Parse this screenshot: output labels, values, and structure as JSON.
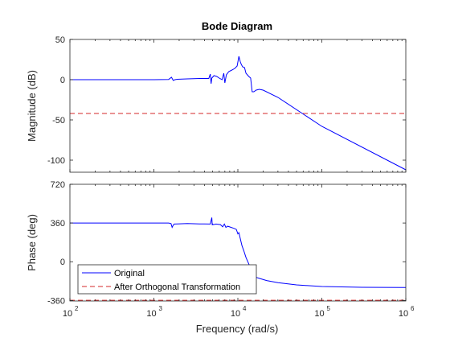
{
  "chart_data": {
    "type": "line",
    "title": "Bode Diagram",
    "xlabel": "Frequency  (rad/s)",
    "x_scale": "log",
    "xlim": [
      100,
      1000000
    ],
    "x_ticks": [
      100,
      1000,
      10000,
      100000,
      1000000
    ],
    "x_tick_labels": [
      {
        "base": "10",
        "exp": "2"
      },
      {
        "base": "10",
        "exp": "3"
      },
      {
        "base": "10",
        "exp": "4"
      },
      {
        "base": "10",
        "exp": "5"
      },
      {
        "base": "10",
        "exp": "6"
      }
    ],
    "grid": false,
    "colors": {
      "original": "#0000ff",
      "transformed": "#d62728",
      "axis": "#262626"
    },
    "legend": {
      "placement": "bottom-left",
      "entries": [
        "Original",
        "After Orthogonal Transformation"
      ]
    },
    "panels": [
      {
        "ylabel": "Magnitude (dB)",
        "ylim": [
          -115,
          50
        ],
        "y_ticks": [
          50,
          0,
          -50,
          -100
        ],
        "y_tick_labels": [
          "50",
          "0",
          "-50",
          "-100"
        ],
        "series": [
          {
            "name": "Original",
            "style": "solid",
            "x": [
              100,
              300,
              1000,
              1500,
              1620,
              1700,
              1780,
              1900,
              2500,
              3500,
              4500,
              4700,
              4800,
              4900,
              5200,
              5600,
              6000,
              6500,
              6800,
              7000,
              7300,
              7800,
              8500,
              9200,
              9800,
              10300,
              10700,
              11000,
              11400,
              12000,
              12500,
              13500,
              14200,
              14800,
              15500,
              16500,
              18000,
              20000,
              30000,
              100000,
              1000000
            ],
            "y": [
              0,
              0,
              0,
              0.3,
              3,
              -1,
              0,
              0.5,
              1,
              1.5,
              1.5,
              7,
              -5,
              2,
              5,
              4,
              2,
              0,
              8,
              -4,
              6,
              10,
              12,
              14,
              17,
              29,
              22,
              19,
              16,
              15,
              8,
              4,
              2,
              -15,
              -15,
              -13,
              -12,
              -13,
              -22,
              -58,
              -112
            ]
          },
          {
            "name": "After Orthogonal Transformation",
            "style": "dashed",
            "x": [
              100,
              1000000
            ],
            "y": [
              -42,
              -42
            ]
          }
        ]
      },
      {
        "ylabel": "Phase (deg)",
        "ylim": [
          -365,
          720
        ],
        "y_ticks": [
          720,
          360,
          0,
          -360
        ],
        "y_tick_labels": [
          "720",
          "360",
          "0",
          "-360"
        ],
        "series": [
          {
            "name": "Original",
            "style": "solid",
            "x": [
              100,
              500,
              1500,
              1600,
              1650,
              1700,
              1750,
              1900,
              2500,
              3500,
              4700,
              4900,
              4950,
              5000,
              5100,
              5500,
              6200,
              6600,
              6900,
              7200,
              7600,
              8300,
              9000,
              9600,
              10000,
              10300,
              10800,
              11200,
              11800,
              12500,
              13500,
              14500,
              15500,
              16500,
              18000,
              22000,
              30000,
              50000,
              100000,
              300000,
              1000000
            ],
            "y": [
              360,
              360,
              360,
              355,
              320,
              340,
              350,
              352,
              355,
              352,
              350,
              410,
              340,
              352,
              345,
              350,
              345,
              325,
              350,
              320,
              330,
              320,
              310,
              300,
              260,
              270,
              200,
              150,
              100,
              40,
              -20,
              -80,
              -130,
              -145,
              -155,
              -175,
              -195,
              -215,
              -230,
              -238,
              -240
            ]
          },
          {
            "name": "After Orthogonal Transformation",
            "style": "dashed",
            "x": [
              100,
              1000000
            ],
            "y": [
              -358,
              -358
            ]
          }
        ]
      }
    ]
  }
}
